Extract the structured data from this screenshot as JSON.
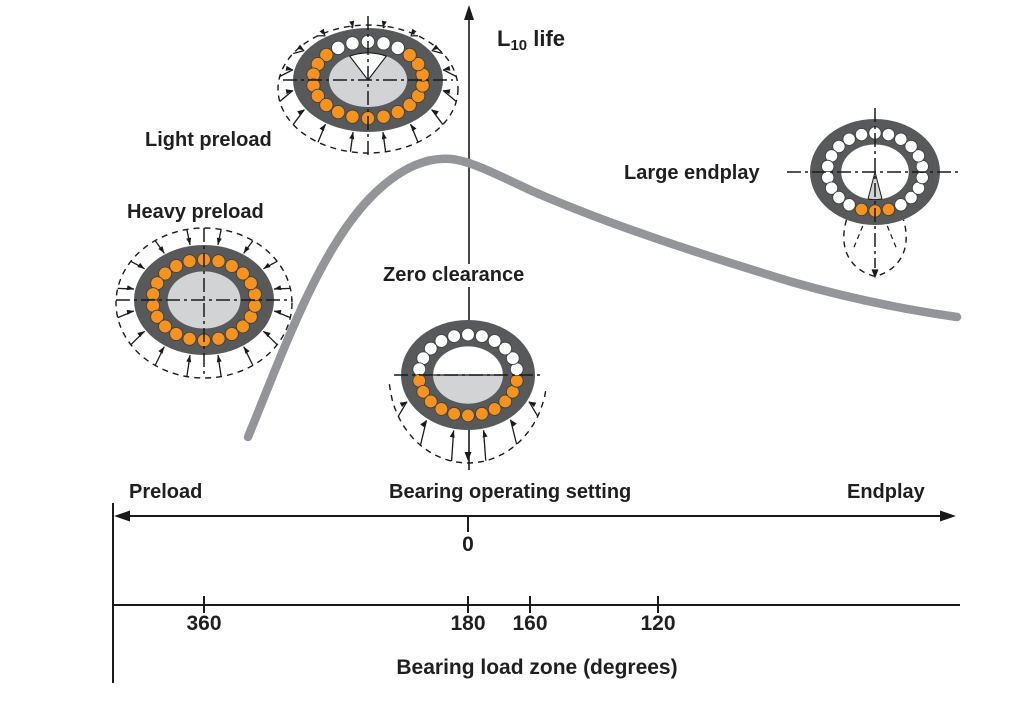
{
  "y_axis": {
    "label_prefix": "L",
    "label_sub": "10",
    "label_suffix": " life"
  },
  "bearings": [
    {
      "label": "Light preload"
    },
    {
      "label": "Heavy preload"
    },
    {
      "label": "Zero clearance"
    },
    {
      "label": "Large endplay"
    }
  ],
  "setting_axis": {
    "left": "Preload",
    "center": "Bearing operating setting",
    "right": "Endplay",
    "zero": "0"
  },
  "load_zone_axis": {
    "ticks": [
      "360",
      "180",
      "160",
      "120"
    ],
    "title": "Bearing load zone (degrees)"
  },
  "colors": {
    "ball_loaded": "#f6921e",
    "ball_unloaded": "#ffffff",
    "ring": "#58595b",
    "shaft": "#d1d3d4",
    "curve": "#939598",
    "line": "#1a1a1a",
    "text": "#1f1f1f"
  },
  "chart_data": {
    "type": "line",
    "title": "",
    "ylabel": "L10 life",
    "xlabel_top": "Bearing operating setting (Preload ← 0 → Endplay)",
    "xlabel_bottom": "Bearing load zone (degrees)",
    "bottom_ticks": [
      360,
      180,
      160,
      120
    ],
    "series": [
      {
        "name": "L10 life (qualitative)",
        "points_fraction_x_vs_relative_life": [
          [
            0.16,
            0.02
          ],
          [
            0.24,
            0.3
          ],
          [
            0.33,
            0.72
          ],
          [
            0.4,
            0.95
          ],
          [
            0.445,
            1.0
          ],
          [
            0.52,
            0.92
          ],
          [
            0.63,
            0.78
          ],
          [
            0.78,
            0.62
          ],
          [
            0.99,
            0.5
          ]
        ]
      }
    ],
    "annotations": [
      "Light preload",
      "Heavy preload",
      "Zero clearance",
      "Large endplay"
    ]
  }
}
